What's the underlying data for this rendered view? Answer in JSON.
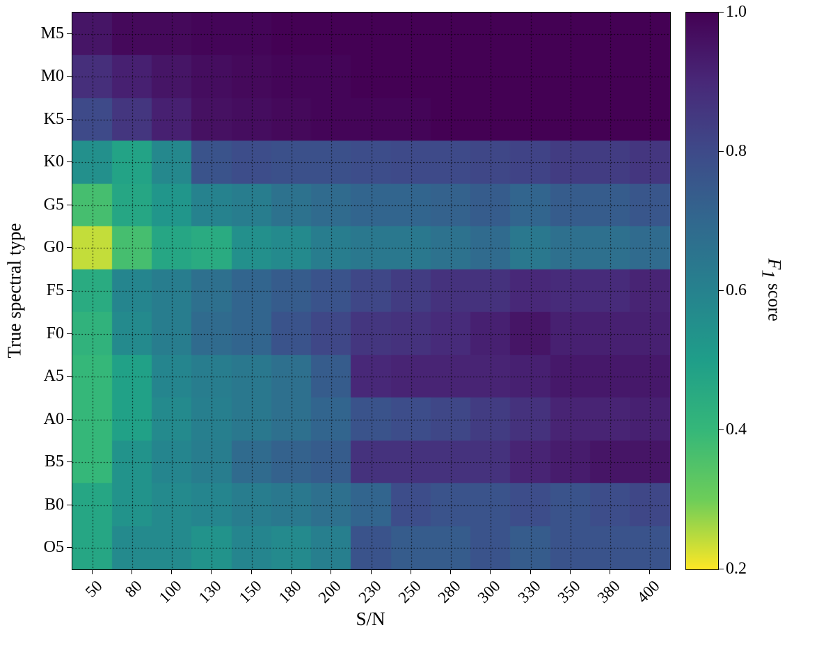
{
  "chart_data": {
    "type": "heatmap",
    "title": "",
    "xlabel": "S/N",
    "ylabel": "True spectral type",
    "colorbar_label": "F1 score",
    "colormap": "viridis_reversed",
    "grid": true,
    "grid_style": "dotted",
    "value_range": [
      0.2,
      1.0
    ],
    "x_categories": [
      "50",
      "80",
      "100",
      "130",
      "150",
      "180",
      "200",
      "230",
      "250",
      "280",
      "300",
      "330",
      "350",
      "380",
      "400"
    ],
    "x_values": [
      50,
      80,
      100,
      130,
      150,
      180,
      200,
      230,
      250,
      280,
      300,
      330,
      350,
      380,
      400
    ],
    "y_categories_top_to_bottom": [
      "M5",
      "M0",
      "K5",
      "K0",
      "G5",
      "G0",
      "F5",
      "F0",
      "A5",
      "A0",
      "B5",
      "B0",
      "O5"
    ],
    "colorbar_ticks": [
      "1.0",
      "0.8",
      "0.6",
      "0.4",
      "0.2"
    ],
    "values_top_to_bottom": [
      [
        0.95,
        0.98,
        0.98,
        0.99,
        0.99,
        1.0,
        1.0,
        1.0,
        1.0,
        1.0,
        1.0,
        1.0,
        1.0,
        1.0,
        1.0
      ],
      [
        0.88,
        0.92,
        0.95,
        0.97,
        0.98,
        0.99,
        0.99,
        1.0,
        1.0,
        1.0,
        1.0,
        1.0,
        1.0,
        1.0,
        1.0
      ],
      [
        0.8,
        0.86,
        0.92,
        0.96,
        0.97,
        0.98,
        0.99,
        0.99,
        0.99,
        1.0,
        1.0,
        1.0,
        1.0,
        1.0,
        1.0
      ],
      [
        0.55,
        0.48,
        0.58,
        0.77,
        0.79,
        0.78,
        0.78,
        0.79,
        0.8,
        0.8,
        0.81,
        0.82,
        0.84,
        0.84,
        0.86
      ],
      [
        0.37,
        0.47,
        0.53,
        0.6,
        0.62,
        0.66,
        0.69,
        0.71,
        0.71,
        0.72,
        0.74,
        0.71,
        0.74,
        0.74,
        0.76
      ],
      [
        0.24,
        0.37,
        0.47,
        0.45,
        0.55,
        0.57,
        0.62,
        0.64,
        0.64,
        0.66,
        0.69,
        0.64,
        0.67,
        0.67,
        0.69
      ],
      [
        0.45,
        0.59,
        0.62,
        0.67,
        0.71,
        0.74,
        0.77,
        0.81,
        0.84,
        0.87,
        0.87,
        0.9,
        0.89,
        0.89,
        0.91
      ],
      [
        0.42,
        0.57,
        0.62,
        0.69,
        0.71,
        0.77,
        0.81,
        0.86,
        0.87,
        0.89,
        0.92,
        0.95,
        0.92,
        0.92,
        0.92
      ],
      [
        0.4,
        0.49,
        0.59,
        0.62,
        0.64,
        0.67,
        0.74,
        0.9,
        0.91,
        0.91,
        0.91,
        0.92,
        0.94,
        0.94,
        0.94
      ],
      [
        0.4,
        0.49,
        0.57,
        0.61,
        0.64,
        0.67,
        0.71,
        0.77,
        0.79,
        0.81,
        0.84,
        0.87,
        0.91,
        0.91,
        0.92
      ],
      [
        0.4,
        0.54,
        0.59,
        0.62,
        0.69,
        0.72,
        0.74,
        0.87,
        0.87,
        0.87,
        0.87,
        0.91,
        0.93,
        0.95,
        0.95
      ],
      [
        0.47,
        0.54,
        0.57,
        0.59,
        0.62,
        0.64,
        0.67,
        0.71,
        0.79,
        0.77,
        0.77,
        0.79,
        0.77,
        0.79,
        0.81
      ],
      [
        0.47,
        0.57,
        0.57,
        0.54,
        0.59,
        0.57,
        0.61,
        0.77,
        0.74,
        0.74,
        0.77,
        0.74,
        0.77,
        0.77,
        0.77
      ]
    ]
  },
  "labels": {
    "cbar_var": "F",
    "cbar_sub": "1",
    "cbar_rest": " score"
  },
  "colors": {
    "background": "#ffffff",
    "axis": "#000000",
    "grid": "#000000",
    "viridis_low": "#440154",
    "viridis_high": "#fde725"
  }
}
